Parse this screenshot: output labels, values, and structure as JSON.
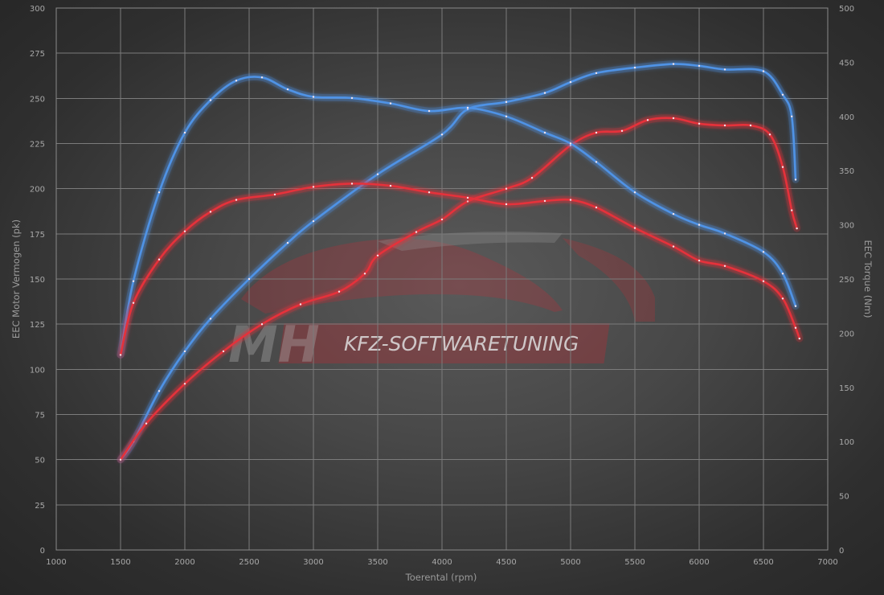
{
  "chart_data": {
    "type": "line",
    "title": "",
    "xlabel": "Toerental (rpm)",
    "ylabel_left": "EEC Motor Vermogen (pk)",
    "ylabel_right": "EEC Torque (Nm)",
    "xlim": [
      1000,
      7000
    ],
    "ylim_left": [
      0,
      300
    ],
    "ylim_right": [
      0,
      500
    ],
    "x_ticks": [
      1000,
      1500,
      2000,
      2500,
      3000,
      3500,
      4000,
      4500,
      5000,
      5500,
      6000,
      6500,
      7000
    ],
    "y_ticks_left": [
      0,
      25,
      50,
      75,
      100,
      125,
      150,
      175,
      200,
      225,
      250,
      275,
      300
    ],
    "y_ticks_right": [
      0,
      50,
      100,
      150,
      200,
      250,
      300,
      350,
      400,
      450,
      500
    ],
    "grid": true,
    "legend": "none",
    "colors": {
      "tuned": "#4f93e6",
      "stock": "#e5303a"
    },
    "watermark": {
      "mark": "MH",
      "text": "KFZ-SOFTWARETUNING"
    },
    "series": [
      {
        "axis": "left",
        "color": "#4f93e6",
        "x": [
          1500,
          1600,
          1800,
          2000,
          2200,
          2500,
          2800,
          3000,
          3500,
          4000,
          4200,
          4500,
          4800,
          5000,
          5200,
          5500,
          5800,
          6000,
          6200,
          6500,
          6650,
          6720,
          6750
        ],
        "y": [
          50,
          60,
          88,
          110,
          128,
          150,
          170,
          182,
          208,
          230,
          244,
          248,
          253,
          259,
          264,
          267,
          269,
          268,
          266,
          265,
          252,
          240,
          205
        ]
      },
      {
        "axis": "left",
        "color": "#e5303a",
        "x": [
          1500,
          1700,
          2000,
          2300,
          2600,
          2900,
          3200,
          3400,
          3500,
          3800,
          4000,
          4200,
          4500,
          4700,
          5000,
          5200,
          5400,
          5600,
          5800,
          6000,
          6200,
          6400,
          6550,
          6650,
          6720,
          6760
        ],
        "y": [
          50,
          70,
          92,
          110,
          125,
          136,
          143,
          153,
          163,
          176,
          183,
          193,
          200,
          206,
          224,
          231,
          232,
          238,
          239,
          236,
          235,
          235,
          230,
          212,
          188,
          178
        ]
      },
      {
        "axis": "right",
        "color": "#4f93e6",
        "x": [
          1500,
          1600,
          1800,
          2000,
          2200,
          2400,
          2600,
          2800,
          3000,
          3300,
          3600,
          3900,
          4200,
          4500,
          4800,
          5000,
          5200,
          5500,
          5800,
          6000,
          6200,
          6500,
          6650,
          6750
        ],
        "y": [
          180,
          248,
          330,
          385,
          415,
          433,
          436,
          425,
          418,
          417,
          412,
          405,
          408,
          400,
          385,
          375,
          358,
          330,
          310,
          300,
          292,
          275,
          255,
          225
        ]
      },
      {
        "axis": "right",
        "color": "#e5303a",
        "x": [
          1500,
          1600,
          1800,
          2000,
          2200,
          2400,
          2700,
          3000,
          3300,
          3600,
          3900,
          4200,
          4500,
          4800,
          5000,
          5200,
          5500,
          5800,
          6000,
          6200,
          6500,
          6650,
          6750,
          6780
        ],
        "y": [
          180,
          228,
          268,
          294,
          312,
          323,
          328,
          335,
          338,
          336,
          330,
          325,
          319,
          322,
          323,
          316,
          297,
          280,
          267,
          262,
          248,
          232,
          205,
          195
        ]
      }
    ]
  }
}
